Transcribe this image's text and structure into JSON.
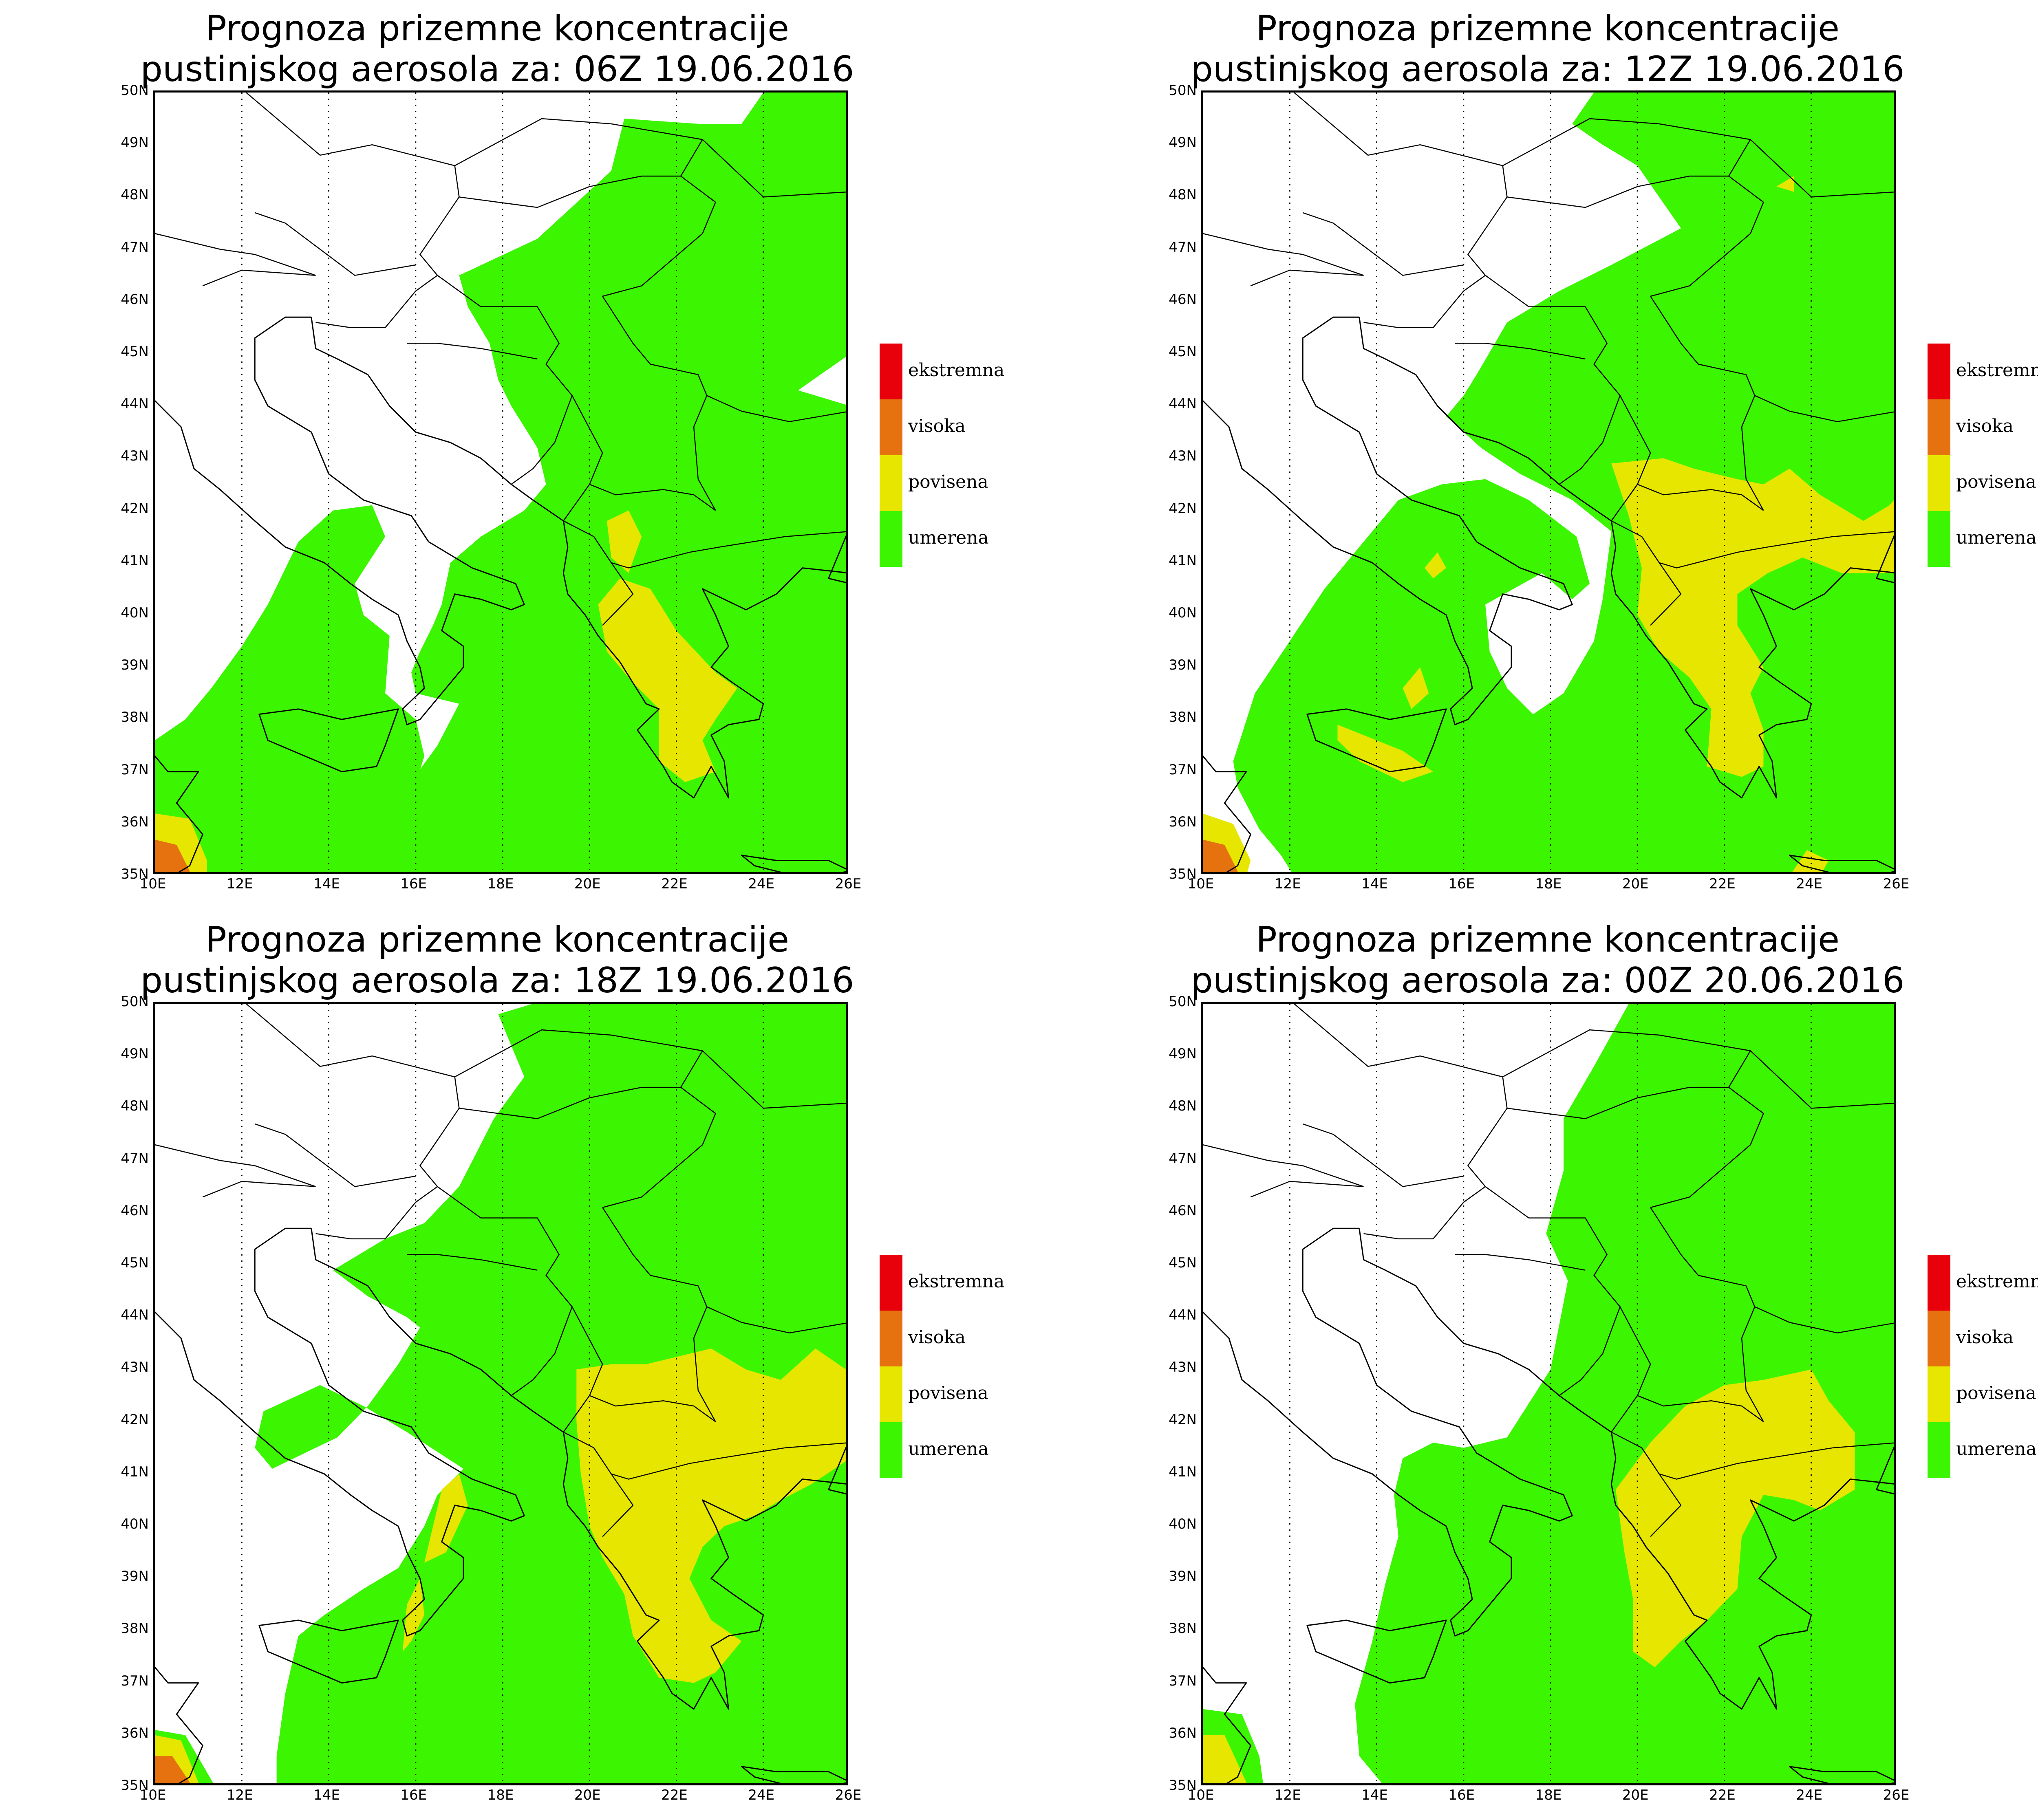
{
  "panels": [
    {
      "title_line1": "Prognoza prizemne koncentracije",
      "title_line2": "pustinjskog aerosola za: 06Z 19.06.2016",
      "valid_time": "06Z 19.06.2016"
    },
    {
      "title_line1": "Prognoza prizemne koncentracije",
      "title_line2": "pustinjskog aerosola za: 12Z 19.06.2016",
      "valid_time": "12Z 19.06.2016"
    },
    {
      "title_line1": "Prognoza prizemne koncentracije",
      "title_line2": "pustinjskog aerosola za: 18Z 19.06.2016",
      "valid_time": "18Z 19.06.2016"
    },
    {
      "title_line1": "Prognoza prizemne koncentracije",
      "title_line2": "pustinjskog aerosola za: 00Z 20.06.2016",
      "valid_time": "00Z 20.06.2016"
    }
  ],
  "map_extent": {
    "lon_min": 10,
    "lon_max": 26,
    "lat_min": 35,
    "lat_max": 50
  },
  "lat_labels": [
    "35N",
    "36N",
    "37N",
    "38N",
    "39N",
    "40N",
    "41N",
    "42N",
    "43N",
    "44N",
    "45N",
    "46N",
    "47N",
    "48N",
    "49N",
    "50N"
  ],
  "lon_labels": [
    "10E",
    "12E",
    "14E",
    "16E",
    "18E",
    "20E",
    "22E",
    "24E",
    "26E"
  ],
  "legend": [
    {
      "label": "ekstremna",
      "color": "#e8000b"
    },
    {
      "label": "visoka",
      "color": "#e5720f"
    },
    {
      "label": "povisena",
      "color": "#e6e600"
    },
    {
      "label": "umerena",
      "color": "#3cf500"
    }
  ],
  "colors": {
    "umerena": "#3cf500",
    "povisena": "#e6e600",
    "visoka": "#e5720f",
    "ekstremna": "#e8000b"
  }
}
